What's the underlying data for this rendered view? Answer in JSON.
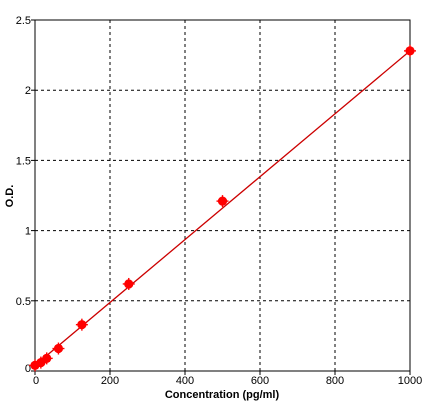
{
  "chart_data": {
    "type": "scatter",
    "title": "",
    "xlabel": "Concentration (pg/ml)",
    "ylabel": "O.D.",
    "xlim": [
      0,
      1000
    ],
    "ylim": [
      0,
      2.5
    ],
    "x_ticks": [
      "0",
      "200",
      "400",
      "600",
      "800",
      "1000"
    ],
    "y_ticks": [
      "0",
      "0.5",
      "1",
      "1.5",
      "2",
      "2.5"
    ],
    "grid": true,
    "grid_style": "dashed",
    "legend": "none",
    "series": [
      {
        "marker_color": "#ff0000",
        "line_color": "#cc0000",
        "x": [
          0,
          15.6,
          31.25,
          62.5,
          125,
          250,
          500,
          1000
        ],
        "y": [
          0.04,
          0.06,
          0.09,
          0.16,
          0.33,
          0.62,
          1.21,
          2.28
        ]
      }
    ],
    "fit_line": {
      "x": [
        0,
        1000
      ],
      "y": [
        0.04,
        2.28
      ]
    }
  }
}
